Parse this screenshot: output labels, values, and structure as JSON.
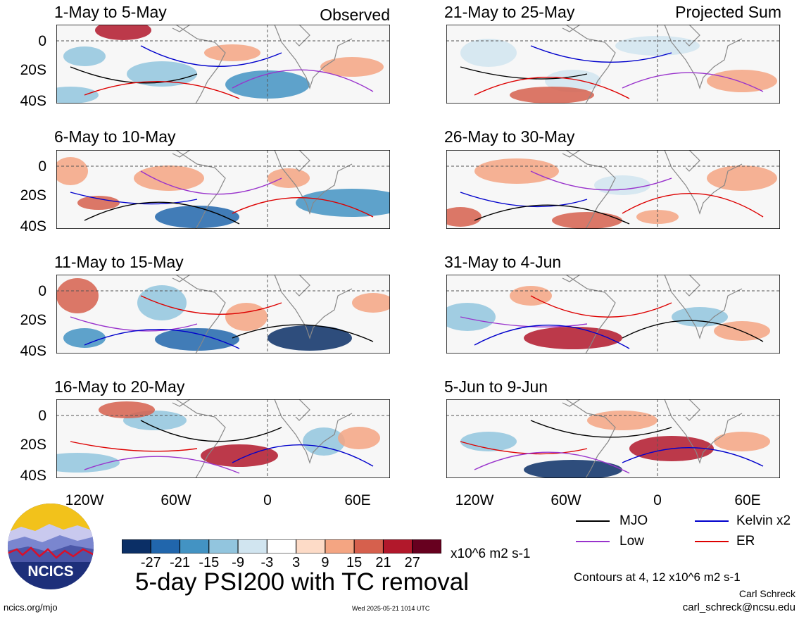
{
  "figure": {
    "main_title": "5-day PSI200 with TC removal",
    "observed_label": "Observed",
    "projected_label": "Projected Sum",
    "contour_note": "Contours at 4, 12 x10^6 m2 s-1",
    "author": "Carl Schreck",
    "email": "carl_schreck@ncsu.edu",
    "site": "ncics.org/mjo",
    "timestamp": "Wed 2025-05-21 1014 UTC",
    "logo_text": "NCICS"
  },
  "panels": [
    {
      "title": "1-May to 5-May"
    },
    {
      "title": "6-May to 10-May"
    },
    {
      "title": "11-May to 15-May"
    },
    {
      "title": "16-May to 20-May"
    },
    {
      "title": "21-May to 25-May"
    },
    {
      "title": "26-May to 30-May"
    },
    {
      "title": "31-May to 4-Jun"
    },
    {
      "title": "5-Jun to 9-Jun"
    }
  ],
  "axes": {
    "lat_labels": [
      "0",
      "20S",
      "40S"
    ],
    "lon_labels": [
      "120W",
      "60W",
      "0",
      "60E"
    ]
  },
  "colorbar": {
    "ticks": [
      "-27",
      "-21",
      "-15",
      "-9",
      "-3",
      "3",
      "9",
      "15",
      "21",
      "27"
    ],
    "units": "x10^6 m2 s-1",
    "colors": [
      "#0b2f66",
      "#2166ac",
      "#4393c3",
      "#92c5de",
      "#d1e5f0",
      "#ffffff",
      "#fddbc7",
      "#f4a582",
      "#d6604d",
      "#b2182b",
      "#67001f"
    ]
  },
  "legend": {
    "items": [
      {
        "label": "MJO",
        "color": "#000000"
      },
      {
        "label": "Kelvin x2",
        "color": "#0000cc"
      },
      {
        "label": "Low",
        "color": "#9933cc"
      },
      {
        "label": "ER",
        "color": "#dd0000"
      }
    ]
  }
}
